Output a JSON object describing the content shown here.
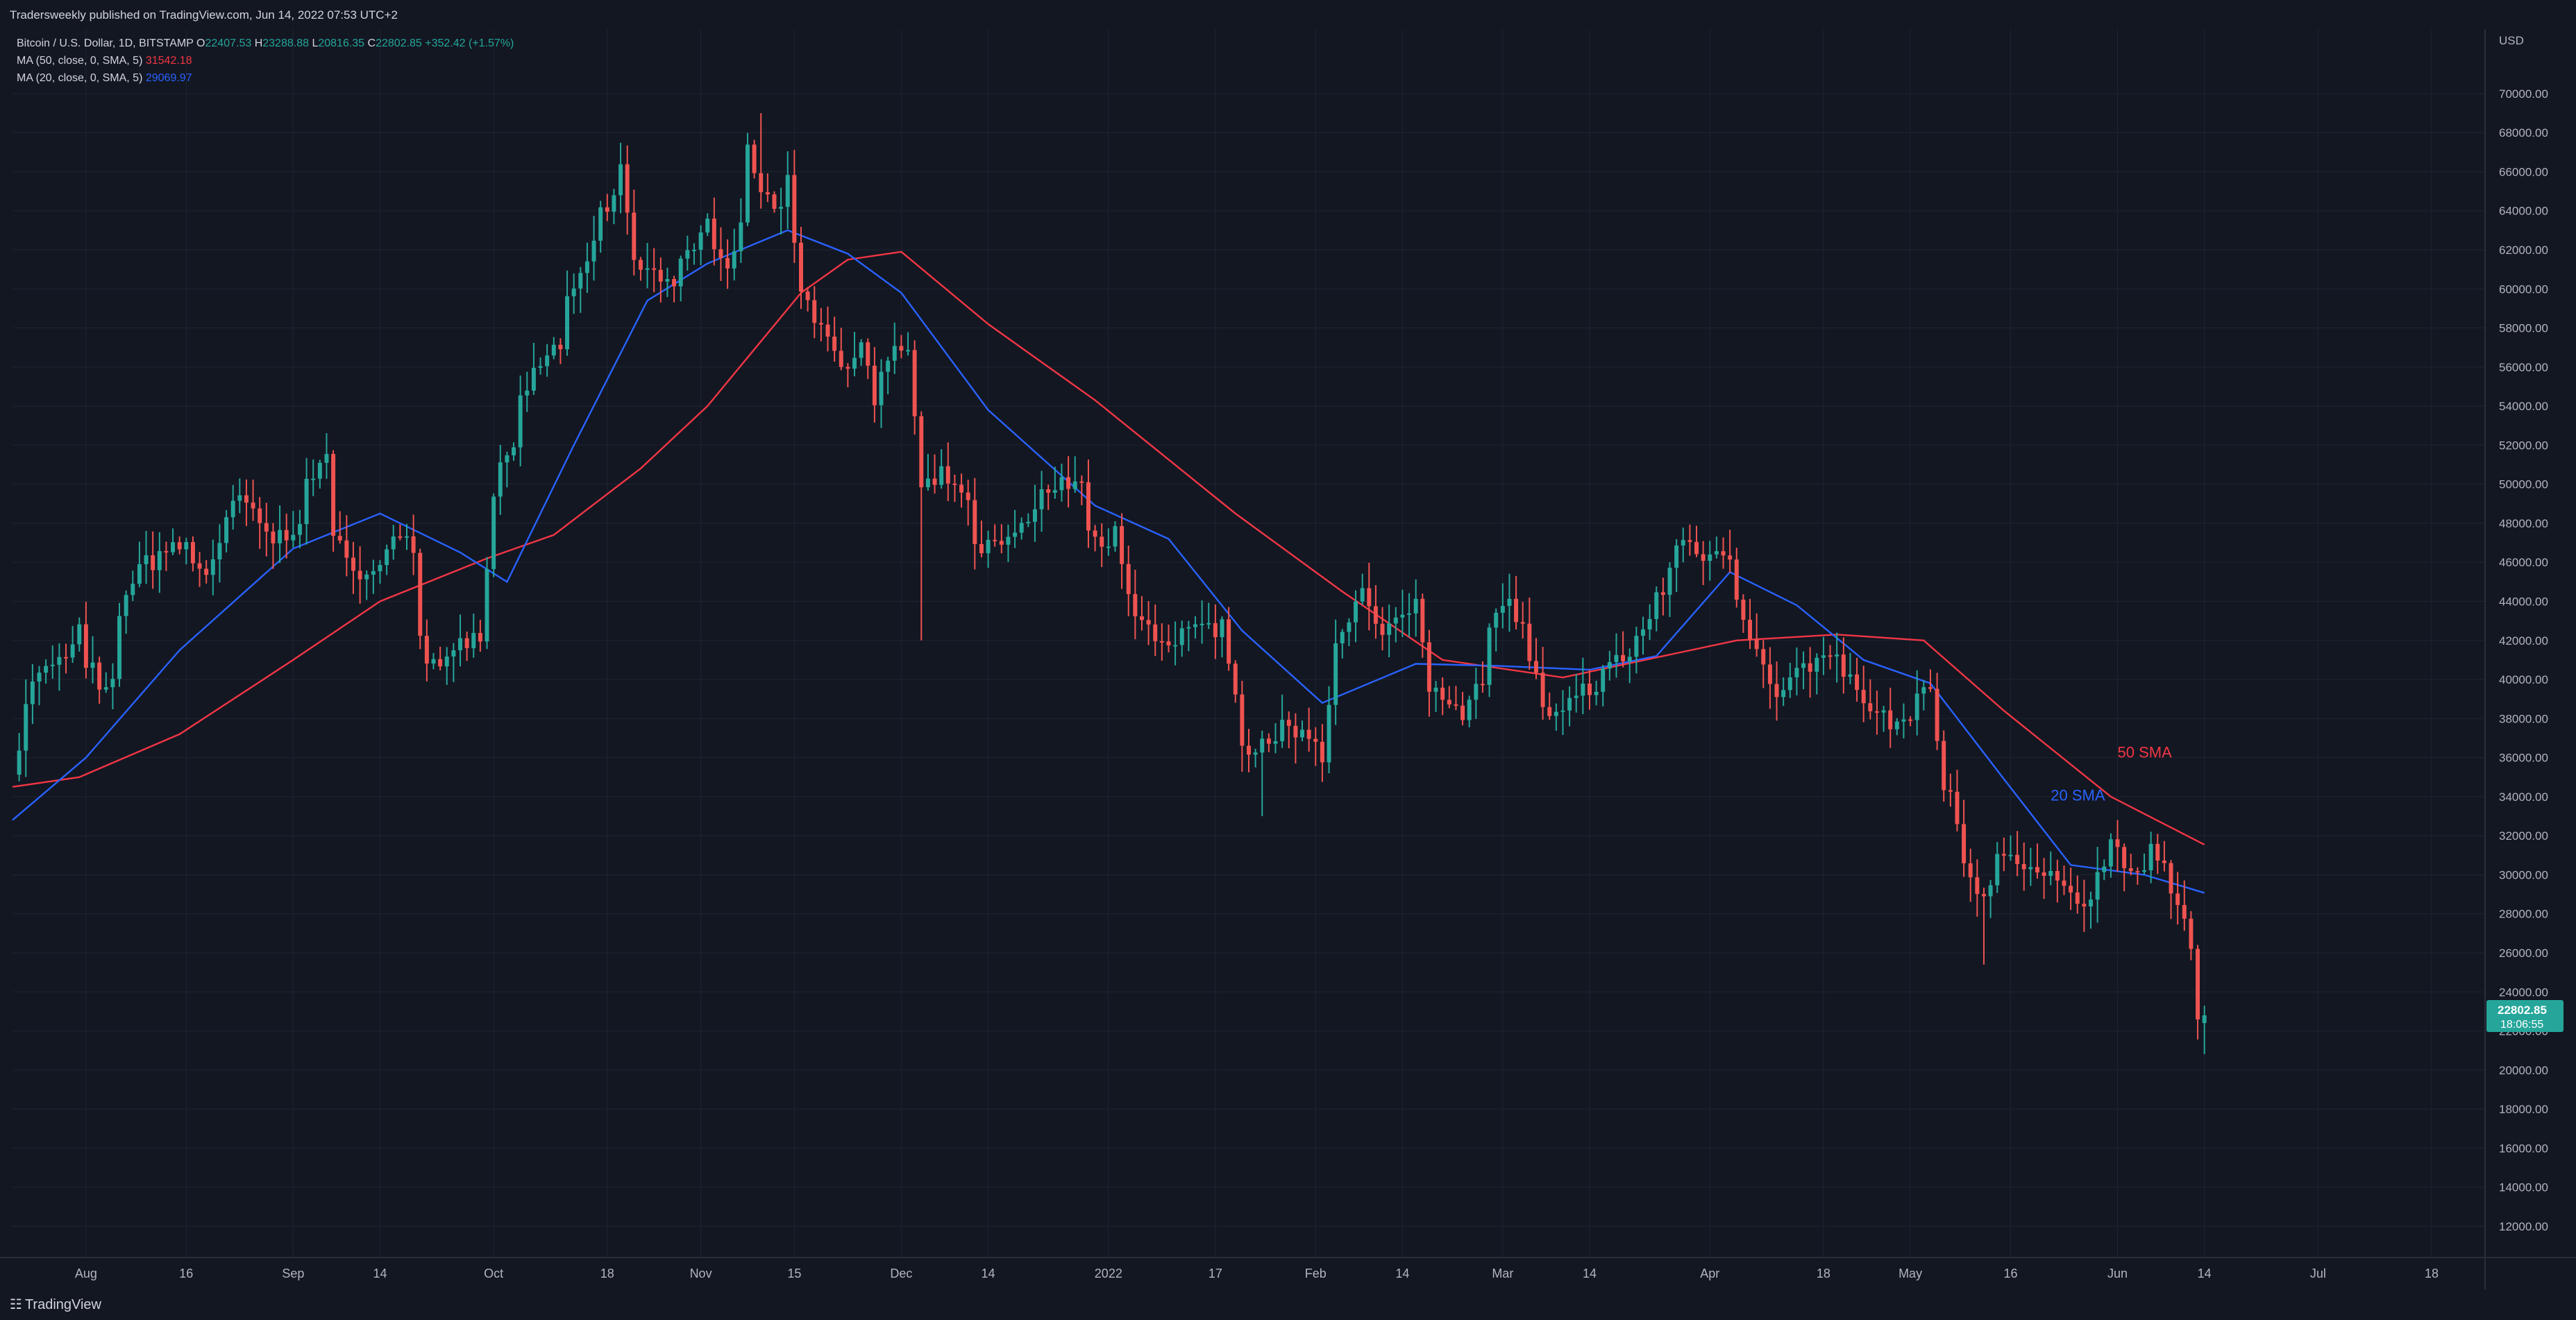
{
  "header": {
    "publisher_line": "Tradersweekly published on TradingView.com, Jun 14, 2022 07:53 UTC+2"
  },
  "legend": {
    "pair": "Bitcoin / U.S. Dollar, 1D, BITSTAMP",
    "open_label": "O",
    "open": "22407.53",
    "high_label": "H",
    "high": "23288.88",
    "low_label": "L",
    "low": "20816.35",
    "close_label": "C",
    "close": "22802.85",
    "change": "+352.42 (+1.57%)",
    "ma50_label": "MA (50, close, 0, SMA, 5)",
    "ma50_value": "31542.18",
    "ma20_label": "MA (20, close, 0, SMA, 5)",
    "ma20_value": "29069.97"
  },
  "footer": {
    "brand": "TradingView",
    "brand_icon": "tradingview-logo-icon"
  },
  "colors": {
    "background": "#131722",
    "up": "#26a69a",
    "down": "#ef5350",
    "sma50": "#f23645",
    "sma20": "#2962ff",
    "grid": "#1f2433",
    "text": "#b2b5be"
  },
  "chart_data": {
    "type": "candlestick",
    "title": "Bitcoin / U.S. Dollar, 1D, BITSTAMP",
    "ylabel": "USD",
    "ylim": [
      10400,
      73300
    ],
    "y_ticks": [
      "12000.00",
      "14000.00",
      "16000.00",
      "18000.00",
      "20000.00",
      "22000.00",
      "24000.00",
      "26000.00",
      "28000.00",
      "30000.00",
      "32000.00",
      "34000.00",
      "36000.00",
      "38000.00",
      "40000.00",
      "42000.00",
      "44000.00",
      "46000.00",
      "48000.00",
      "50000.00",
      "52000.00",
      "54000.00",
      "56000.00",
      "58000.00",
      "60000.00",
      "62000.00",
      "64000.00",
      "66000.00",
      "68000.00",
      "70000.00"
    ],
    "x_ticks": [
      {
        "label": "Aug",
        "date": "2021-08-01"
      },
      {
        "label": "16",
        "date": "2021-08-16"
      },
      {
        "label": "Sep",
        "date": "2021-09-01"
      },
      {
        "label": "14",
        "date": "2021-09-14"
      },
      {
        "label": "Oct",
        "date": "2021-10-01"
      },
      {
        "label": "18",
        "date": "2021-10-18"
      },
      {
        "label": "Nov",
        "date": "2021-11-01"
      },
      {
        "label": "15",
        "date": "2021-11-15"
      },
      {
        "label": "Dec",
        "date": "2021-12-01"
      },
      {
        "label": "14",
        "date": "2021-12-14"
      },
      {
        "label": "2022",
        "date": "2022-01-01"
      },
      {
        "label": "17",
        "date": "2022-01-17"
      },
      {
        "label": "Feb",
        "date": "2022-02-01"
      },
      {
        "label": "14",
        "date": "2022-02-14"
      },
      {
        "label": "Mar",
        "date": "2022-03-01"
      },
      {
        "label": "14",
        "date": "2022-03-14"
      },
      {
        "label": "Apr",
        "date": "2022-04-01"
      },
      {
        "label": "18",
        "date": "2022-04-18"
      },
      {
        "label": "May",
        "date": "2022-05-01"
      },
      {
        "label": "16",
        "date": "2022-05-16"
      },
      {
        "label": "Jun",
        "date": "2022-06-01"
      },
      {
        "label": "14",
        "date": "2022-06-14"
      },
      {
        "label": "Jul",
        "date": "2022-07-01"
      },
      {
        "label": "18",
        "date": "2022-07-18"
      }
    ],
    "x_range": [
      "2021-07-21",
      "2022-07-26"
    ],
    "close_keypoints": [
      [
        "2021-07-21",
        35500
      ],
      [
        "2021-07-24",
        39800
      ],
      [
        "2021-07-31",
        42000
      ],
      [
        "2021-08-04",
        38300
      ],
      [
        "2021-08-07",
        44800
      ],
      [
        "2021-08-14",
        47200
      ],
      [
        "2021-08-19",
        45600
      ],
      [
        "2021-08-24",
        49300
      ],
      [
        "2021-08-30",
        46800
      ],
      [
        "2021-09-06",
        51800
      ],
      [
        "2021-09-07",
        46800
      ],
      [
        "2021-09-13",
        45300
      ],
      [
        "2021-09-18",
        48300
      ],
      [
        "2021-09-21",
        40600
      ],
      [
        "2021-09-29",
        42500
      ],
      [
        "2021-10-01",
        48100
      ],
      [
        "2021-10-06",
        55100
      ],
      [
        "2021-10-11",
        57500
      ],
      [
        "2021-10-15",
        61500
      ],
      [
        "2021-10-20",
        66100
      ],
      [
        "2021-10-22",
        61500
      ],
      [
        "2021-10-28",
        60300
      ],
      [
        "2021-11-02",
        63100
      ],
      [
        "2021-11-06",
        61300
      ],
      [
        "2021-11-08",
        67500
      ],
      [
        "2021-11-10",
        64900
      ],
      [
        "2021-11-12",
        64200
      ],
      [
        "2021-11-14",
        64900
      ],
      [
        "2021-11-16",
        60200
      ],
      [
        "2021-11-19",
        58200
      ],
      [
        "2021-11-22",
        56200
      ],
      [
        "2021-11-25",
        57200
      ],
      [
        "2021-11-27",
        53800
      ],
      [
        "2021-11-30",
        57200
      ],
      [
        "2021-12-02",
        56500
      ],
      [
        "2021-12-04",
        49400
      ],
      [
        "2021-12-08",
        50600
      ],
      [
        "2021-12-13",
        46800
      ],
      [
        "2021-12-17",
        47000
      ],
      [
        "2021-12-21",
        48900
      ],
      [
        "2021-12-27",
        50700
      ],
      [
        "2021-12-30",
        47100
      ],
      [
        "2022-01-02",
        47300
      ],
      [
        "2022-01-05",
        43000
      ],
      [
        "2022-01-10",
        41800
      ],
      [
        "2022-01-14",
        43100
      ],
      [
        "2022-01-18",
        42200
      ],
      [
        "2022-01-21",
        36200
      ],
      [
        "2022-01-24",
        36700
      ],
      [
        "2022-01-28",
        37700
      ],
      [
        "2022-02-02",
        36900
      ],
      [
        "2022-02-04",
        41600
      ],
      [
        "2022-02-08",
        44100
      ],
      [
        "2022-02-11",
        42400
      ],
      [
        "2022-02-16",
        44500
      ],
      [
        "2022-02-18",
        40000
      ],
      [
        "2022-02-22",
        38300
      ],
      [
        "2022-02-24",
        38400
      ],
      [
        "2022-02-28",
        43200
      ],
      [
        "2022-03-02",
        44400
      ],
      [
        "2022-03-07",
        38100
      ],
      [
        "2022-03-11",
        38800
      ],
      [
        "2022-03-14",
        39700
      ],
      [
        "2022-03-20",
        41300
      ],
      [
        "2022-03-24",
        44000
      ],
      [
        "2022-03-28",
        47100
      ],
      [
        "2022-04-01",
        46300
      ],
      [
        "2022-04-04",
        46600
      ],
      [
        "2022-04-06",
        43200
      ],
      [
        "2022-04-11",
        39500
      ],
      [
        "2022-04-15",
        40500
      ],
      [
        "2022-04-20",
        41400
      ],
      [
        "2022-04-22",
        39700
      ],
      [
        "2022-04-26",
        38100
      ],
      [
        "2022-04-30",
        37700
      ],
      [
        "2022-05-04",
        39700
      ],
      [
        "2022-05-05",
        36500
      ],
      [
        "2022-05-09",
        30100
      ],
      [
        "2022-05-12",
        29000
      ],
      [
        "2022-05-15",
        31300
      ],
      [
        "2022-05-19",
        30300
      ],
      [
        "2022-05-24",
        29200
      ],
      [
        "2022-05-27",
        28600
      ],
      [
        "2022-05-31",
        31800
      ],
      [
        "2022-06-03",
        29700
      ],
      [
        "2022-06-06",
        31400
      ],
      [
        "2022-06-08",
        30200
      ],
      [
        "2022-06-10",
        28400
      ],
      [
        "2022-06-11",
        28000
      ],
      [
        "2022-06-12",
        26600
      ],
      [
        "2022-06-13",
        22400
      ],
      [
        "2022-06-14",
        22802.85
      ]
    ],
    "last_bar": {
      "date": "2022-06-14",
      "open": 22407.53,
      "high": 23288.88,
      "low": 20816.35,
      "close": 22802.85
    },
    "extreme_wicks": [
      {
        "date": "2021-11-10",
        "high": 69000
      },
      {
        "date": "2021-12-04",
        "low": 42000
      },
      {
        "date": "2022-01-24",
        "low": 33000
      },
      {
        "date": "2022-05-12",
        "low": 25400
      },
      {
        "date": "2022-06-14",
        "low": 20816
      }
    ],
    "price_label": {
      "value": "22802.85",
      "countdown": "18:06:55"
    },
    "series": [
      {
        "name": "MA (50, close, 0, SMA, 5)",
        "period": 50,
        "last": 31542.18,
        "line_keypoints": [
          [
            "2021-07-21",
            34500
          ],
          [
            "2021-07-31",
            35000
          ],
          [
            "2021-08-15",
            37200
          ],
          [
            "2021-09-01",
            41000
          ],
          [
            "2021-09-14",
            44000
          ],
          [
            "2021-09-30",
            46200
          ],
          [
            "2021-10-10",
            47400
          ],
          [
            "2021-10-23",
            50800
          ],
          [
            "2021-11-02",
            54000
          ],
          [
            "2021-11-16",
            59800
          ],
          [
            "2021-11-23",
            61500
          ],
          [
            "2021-12-01",
            61900
          ],
          [
            "2021-12-14",
            58200
          ],
          [
            "2021-12-30",
            54300
          ],
          [
            "2022-01-20",
            48500
          ],
          [
            "2022-02-05",
            44500
          ],
          [
            "2022-02-20",
            41000
          ],
          [
            "2022-03-10",
            40100
          ],
          [
            "2022-03-25",
            41200
          ],
          [
            "2022-04-05",
            42000
          ],
          [
            "2022-04-20",
            42300
          ],
          [
            "2022-05-03",
            42000
          ],
          [
            "2022-05-15",
            38400
          ],
          [
            "2022-05-31",
            34000
          ],
          [
            "2022-06-14",
            31542.18
          ]
        ]
      },
      {
        "name": "MA (20, close, 0, SMA, 5)",
        "period": 20,
        "last": 29069.97,
        "line_keypoints": [
          [
            "2021-07-21",
            32800
          ],
          [
            "2021-08-01",
            36000
          ],
          [
            "2021-08-15",
            41500
          ],
          [
            "2021-09-01",
            46700
          ],
          [
            "2021-09-14",
            48500
          ],
          [
            "2021-09-26",
            46500
          ],
          [
            "2021-10-03",
            45000
          ],
          [
            "2021-10-13",
            52000
          ],
          [
            "2021-10-24",
            59400
          ],
          [
            "2021-11-02",
            61300
          ],
          [
            "2021-11-14",
            63000
          ],
          [
            "2021-11-23",
            61800
          ],
          [
            "2021-12-01",
            59800
          ],
          [
            "2021-12-14",
            53800
          ],
          [
            "2021-12-30",
            48900
          ],
          [
            "2022-01-10",
            47200
          ],
          [
            "2022-01-21",
            42500
          ],
          [
            "2022-02-02",
            38800
          ],
          [
            "2022-02-16",
            40800
          ],
          [
            "2022-02-28",
            40700
          ],
          [
            "2022-03-14",
            40500
          ],
          [
            "2022-03-24",
            41200
          ],
          [
            "2022-04-04",
            45500
          ],
          [
            "2022-04-14",
            43800
          ],
          [
            "2022-04-24",
            41000
          ],
          [
            "2022-05-04",
            39800
          ],
          [
            "2022-05-15",
            34900
          ],
          [
            "2022-05-25",
            30500
          ],
          [
            "2022-06-05",
            30000
          ],
          [
            "2022-06-14",
            29069.97
          ]
        ]
      }
    ],
    "annotations": [
      {
        "text": "50 SMA",
        "color": "#f23645",
        "anchor": {
          "date": "2022-06-01",
          "price": 36000
        }
      },
      {
        "text": "20 SMA",
        "color": "#2962ff",
        "anchor": {
          "date": "2022-05-22",
          "price": 33800
        }
      }
    ],
    "grid": true,
    "legend_position": "top-left"
  }
}
